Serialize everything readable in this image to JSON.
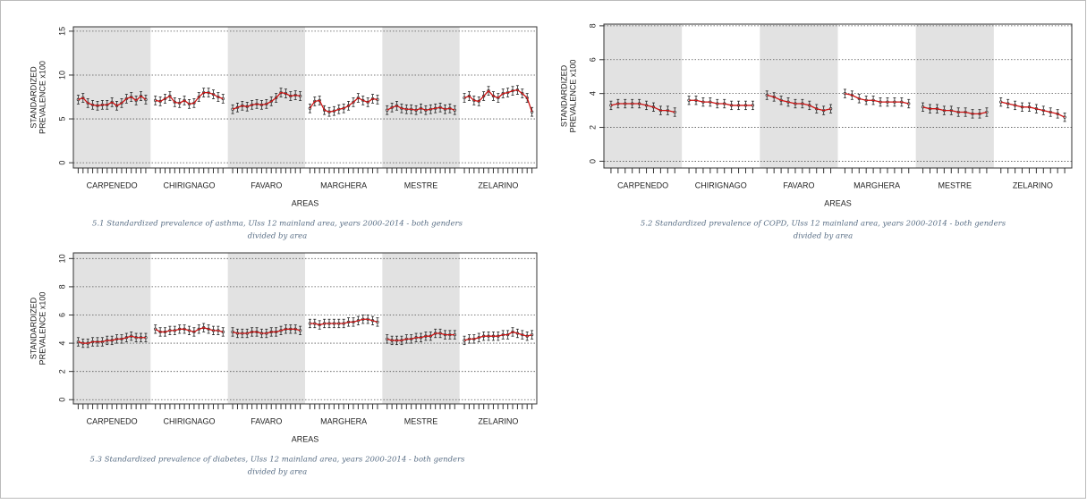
{
  "chart_data": [
    {
      "type": "errorbar",
      "ylim": [
        -0.6,
        15.5
      ],
      "yticks": [
        0,
        5,
        10,
        15
      ],
      "grid": true,
      "error": 0.5,
      "ylabel": [
        "STANDARDIZED",
        "PREVALENCE x100"
      ],
      "xlabel": "AREAS",
      "caption": [
        "5.1 Standardized prevalence of asthma, Ulss 12 mainland area, years 2000-2014 - both genders",
        "divided by area"
      ],
      "shade_color": "#e2e2e2",
      "line_color": "#cc1111",
      "series": [
        {
          "name": "CARPENEDO",
          "values": [
            7.2,
            7.4,
            6.8,
            6.6,
            6.5,
            6.6,
            6.6,
            6.9,
            6.5,
            6.8,
            7.3,
            7.5,
            7.1,
            7.6,
            7.2
          ]
        },
        {
          "name": "CHIRIGNAGO",
          "values": [
            7.1,
            7.0,
            7.3,
            7.6,
            6.9,
            6.8,
            7.1,
            6.7,
            6.8,
            7.5,
            8.0,
            8.0,
            7.8,
            7.5,
            7.3
          ]
        },
        {
          "name": "FAVARO",
          "values": [
            6.1,
            6.3,
            6.5,
            6.4,
            6.6,
            6.7,
            6.6,
            6.7,
            7.0,
            7.4,
            8.0,
            7.9,
            7.6,
            7.7,
            7.6
          ]
        },
        {
          "name": "MARGHERA",
          "values": [
            6.2,
            7.0,
            7.1,
            6.0,
            5.8,
            5.9,
            6.1,
            6.2,
            6.5,
            6.9,
            7.4,
            7.1,
            6.9,
            7.3,
            7.2
          ]
        },
        {
          "name": "MESTRE",
          "values": [
            6.0,
            6.3,
            6.5,
            6.2,
            6.1,
            6.1,
            6.0,
            6.2,
            6.0,
            6.1,
            6.2,
            6.3,
            6.1,
            6.2,
            6.0
          ]
        },
        {
          "name": "ZELARINO",
          "values": [
            7.4,
            7.6,
            7.1,
            7.0,
            7.6,
            8.2,
            7.6,
            7.4,
            7.9,
            8.0,
            8.2,
            8.3,
            7.9,
            7.4,
            5.8
          ]
        }
      ]
    },
    {
      "type": "errorbar",
      "ylim": [
        -0.4,
        8.1
      ],
      "yticks": [
        0,
        2,
        4,
        6,
        8
      ],
      "grid": true,
      "error": 0.25,
      "ylabel": [
        "STANDARDIZED",
        "PREVALENCE x100"
      ],
      "xlabel": "AREAS",
      "caption": [
        "5.2 Standardized prevalence of COPD, Ulss 12 mainland area, years 2000-2014 - both genders",
        "divided by area"
      ],
      "shade_color": "#e2e2e2",
      "line_color": "#cc1111",
      "series": [
        {
          "name": "CARPENEDO",
          "values": [
            3.3,
            3.4,
            3.4,
            3.4,
            3.4,
            3.3,
            3.2,
            3.0,
            3.0,
            2.9
          ]
        },
        {
          "name": "CHIRIGNAGO",
          "values": [
            3.6,
            3.6,
            3.5,
            3.5,
            3.4,
            3.4,
            3.3,
            3.3,
            3.3,
            3.3
          ]
        },
        {
          "name": "FAVARO",
          "values": [
            3.9,
            3.8,
            3.6,
            3.5,
            3.4,
            3.4,
            3.3,
            3.1,
            3.0,
            3.1
          ]
        },
        {
          "name": "MARGHERA",
          "values": [
            4.0,
            3.9,
            3.7,
            3.6,
            3.6,
            3.5,
            3.5,
            3.5,
            3.5,
            3.4
          ]
        },
        {
          "name": "MESTRE",
          "values": [
            3.2,
            3.1,
            3.1,
            3.0,
            3.0,
            2.9,
            2.9,
            2.8,
            2.8,
            2.9
          ]
        },
        {
          "name": "ZELARINO",
          "values": [
            3.5,
            3.4,
            3.3,
            3.2,
            3.2,
            3.1,
            3.0,
            2.9,
            2.8,
            2.6
          ]
        }
      ]
    },
    {
      "type": "errorbar",
      "ylim": [
        -0.3,
        10.4
      ],
      "yticks": [
        0,
        2,
        4,
        6,
        8,
        10
      ],
      "grid": true,
      "error": 0.3,
      "ylabel": [
        "STANDARDIZED",
        "PREVALENCE x100"
      ],
      "xlabel": "AREAS",
      "caption": [
        "5.3 Standardized prevalence of diabetes, Ulss 12 mainland area, years 2000-2014 - both genders",
        "divided by area"
      ],
      "shade_color": "#e2e2e2",
      "line_color": "#cc1111",
      "series": [
        {
          "name": "CARPENEDO",
          "values": [
            4.1,
            4.0,
            4.0,
            4.1,
            4.1,
            4.1,
            4.2,
            4.2,
            4.3,
            4.3,
            4.4,
            4.5,
            4.4,
            4.4,
            4.4
          ]
        },
        {
          "name": "CHIRIGNAGO",
          "values": [
            5.0,
            4.8,
            4.8,
            4.9,
            4.9,
            5.0,
            5.0,
            4.9,
            4.8,
            5.0,
            5.1,
            5.0,
            4.9,
            4.9,
            4.8
          ]
        },
        {
          "name": "FAVARO",
          "values": [
            4.8,
            4.7,
            4.7,
            4.7,
            4.8,
            4.8,
            4.7,
            4.7,
            4.8,
            4.8,
            4.9,
            5.0,
            5.0,
            5.0,
            4.9
          ]
        },
        {
          "name": "MARGHERA",
          "values": [
            5.4,
            5.4,
            5.3,
            5.4,
            5.4,
            5.4,
            5.4,
            5.4,
            5.5,
            5.5,
            5.6,
            5.7,
            5.7,
            5.6,
            5.5
          ]
        },
        {
          "name": "MESTRE",
          "values": [
            4.3,
            4.2,
            4.2,
            4.2,
            4.3,
            4.3,
            4.4,
            4.4,
            4.5,
            4.5,
            4.7,
            4.7,
            4.6,
            4.6,
            4.6
          ]
        },
        {
          "name": "ZELARINO",
          "values": [
            4.2,
            4.3,
            4.3,
            4.4,
            4.5,
            4.5,
            4.5,
            4.5,
            4.6,
            4.6,
            4.8,
            4.7,
            4.6,
            4.5,
            4.6
          ]
        }
      ]
    }
  ]
}
